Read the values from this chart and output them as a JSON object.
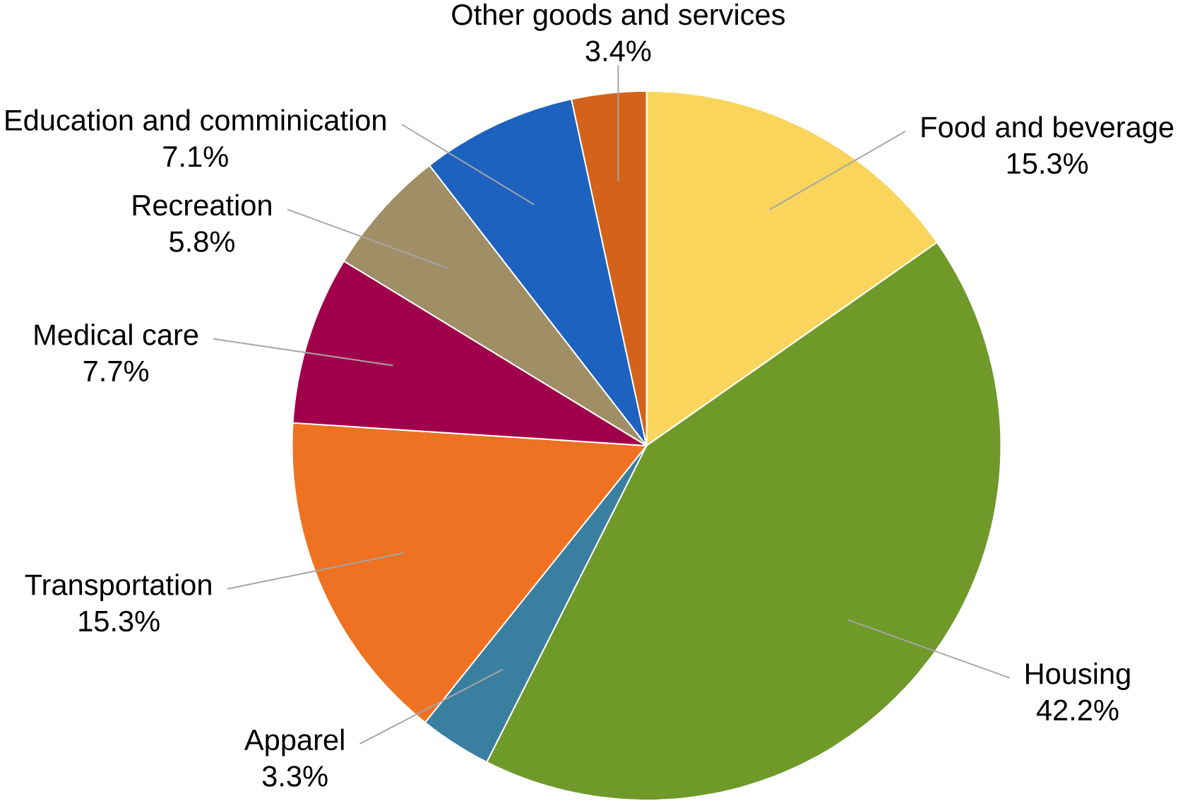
{
  "chart_data": {
    "type": "pie",
    "categories": [
      "Food and beverage",
      "Housing",
      "Apparel",
      "Transportation",
      "Medical care",
      "Recreation",
      "Education and comminication",
      "Other goods and services"
    ],
    "values": [
      15.3,
      42.2,
      3.3,
      15.3,
      7.7,
      5.8,
      7.1,
      3.4
    ],
    "value_labels": [
      "15.3%",
      "42.2%",
      "3.3%",
      "15.3%",
      "7.7%",
      "5.8%",
      "7.1%",
      "3.4%"
    ],
    "colors": [
      "#f9d55c",
      "#6f9a2a",
      "#3a7fa0",
      "#ee7222",
      "#a0004a",
      "#a08f66",
      "#1e62c0",
      "#d4621a"
    ]
  }
}
